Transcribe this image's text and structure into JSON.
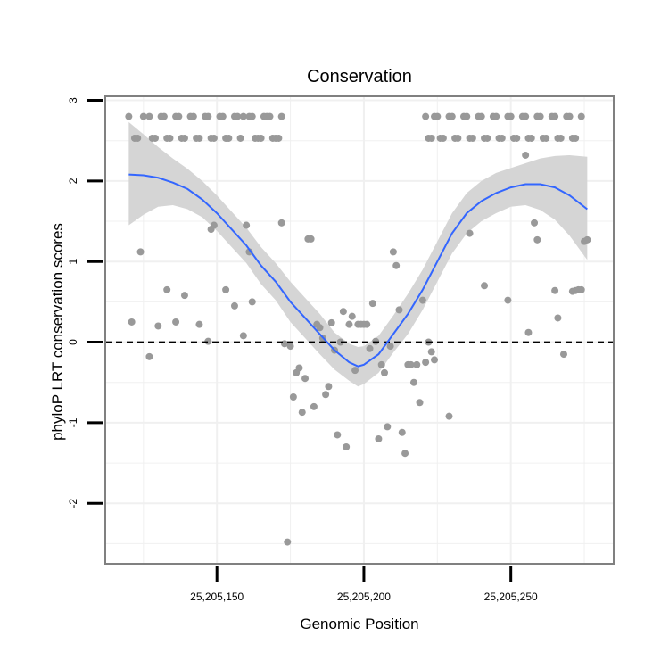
{
  "chart_data": {
    "type": "scatter",
    "title": "Conservation",
    "xlabel": "Genomic Position",
    "ylabel": "phyloP LRT conservation scores",
    "xlim": [
      25205112,
      25205285
    ],
    "ylim": [
      -2.75,
      3.05
    ],
    "x_ticks": [
      {
        "value": 25205150,
        "label": "25,205,150"
      },
      {
        "value": 25205200,
        "label": "25,205,200"
      },
      {
        "value": 25205250,
        "label": "25,205,250"
      }
    ],
    "y_ticks": [
      {
        "value": -2,
        "label": "-2"
      },
      {
        "value": -1,
        "label": "-1"
      },
      {
        "value": 0,
        "label": "0"
      },
      {
        "value": 1,
        "label": "1"
      },
      {
        "value": 2,
        "label": "2"
      },
      {
        "value": 3,
        "label": "3"
      }
    ],
    "grid": true,
    "reference_line": {
      "y": 0,
      "style": "dashed"
    },
    "colors": {
      "points": "#999999",
      "smooth": "#3366FF",
      "ribbon": "#d3d3d3",
      "panel_border": "#808080",
      "grid": "#f0f0f0"
    },
    "points": [
      [
        25205120,
        2.8
      ],
      [
        25205122,
        2.53
      ],
      [
        25205123,
        2.53
      ],
      [
        25205125,
        2.8
      ],
      [
        25205127,
        2.8
      ],
      [
        25205128,
        2.53
      ],
      [
        25205129,
        2.53
      ],
      [
        25205131,
        2.8
      ],
      [
        25205132,
        2.8
      ],
      [
        25205133,
        2.53
      ],
      [
        25205134,
        2.53
      ],
      [
        25205136,
        2.8
      ],
      [
        25205137,
        2.8
      ],
      [
        25205138,
        2.53
      ],
      [
        25205139,
        2.53
      ],
      [
        25205141,
        2.8
      ],
      [
        25205142,
        2.8
      ],
      [
        25205143,
        2.53
      ],
      [
        25205144,
        2.53
      ],
      [
        25205146,
        2.8
      ],
      [
        25205147,
        2.8
      ],
      [
        25205148,
        2.53
      ],
      [
        25205149,
        2.53
      ],
      [
        25205151,
        2.8
      ],
      [
        25205152,
        2.8
      ],
      [
        25205153,
        2.53
      ],
      [
        25205154,
        2.53
      ],
      [
        25205156,
        2.8
      ],
      [
        25205157,
        2.8
      ],
      [
        25205158,
        2.53
      ],
      [
        25205159,
        2.8
      ],
      [
        25205161,
        2.8
      ],
      [
        25205162,
        2.8
      ],
      [
        25205163,
        2.53
      ],
      [
        25205164,
        2.53
      ],
      [
        25205165,
        2.53
      ],
      [
        25205166,
        2.8
      ],
      [
        25205167,
        2.8
      ],
      [
        25205168,
        2.8
      ],
      [
        25205169,
        2.53
      ],
      [
        25205170,
        2.53
      ],
      [
        25205171,
        2.53
      ],
      [
        25205172,
        2.8
      ],
      [
        25205221,
        2.8
      ],
      [
        25205222,
        2.53
      ],
      [
        25205223,
        2.53
      ],
      [
        25205224,
        2.8
      ],
      [
        25205225,
        2.8
      ],
      [
        25205226,
        2.53
      ],
      [
        25205227,
        2.53
      ],
      [
        25205229,
        2.8
      ],
      [
        25205230,
        2.8
      ],
      [
        25205231,
        2.53
      ],
      [
        25205232,
        2.53
      ],
      [
        25205234,
        2.8
      ],
      [
        25205235,
        2.8
      ],
      [
        25205236,
        2.53
      ],
      [
        25205237,
        2.53
      ],
      [
        25205239,
        2.8
      ],
      [
        25205240,
        2.8
      ],
      [
        25205241,
        2.53
      ],
      [
        25205242,
        2.53
      ],
      [
        25205244,
        2.8
      ],
      [
        25205245,
        2.8
      ],
      [
        25205246,
        2.53
      ],
      [
        25205247,
        2.53
      ],
      [
        25205249,
        2.8
      ],
      [
        25205250,
        2.8
      ],
      [
        25205251,
        2.53
      ],
      [
        25205252,
        2.53
      ],
      [
        25205254,
        2.8
      ],
      [
        25205255,
        2.8
      ],
      [
        25205256,
        2.53
      ],
      [
        25205257,
        2.53
      ],
      [
        25205259,
        2.8
      ],
      [
        25205260,
        2.8
      ],
      [
        25205261,
        2.53
      ],
      [
        25205262,
        2.53
      ],
      [
        25205264,
        2.8
      ],
      [
        25205265,
        2.8
      ],
      [
        25205266,
        2.53
      ],
      [
        25205267,
        2.53
      ],
      [
        25205269,
        2.8
      ],
      [
        25205270,
        2.8
      ],
      [
        25205271,
        2.53
      ],
      [
        25205272,
        2.53
      ],
      [
        25205274,
        2.8
      ],
      [
        25205121,
        0.25
      ],
      [
        25205124,
        1.12
      ],
      [
        25205127,
        -0.18
      ],
      [
        25205130,
        0.2
      ],
      [
        25205133,
        0.65
      ],
      [
        25205136,
        0.25
      ],
      [
        25205139,
        0.58
      ],
      [
        25205144,
        0.22
      ],
      [
        25205147,
        0.01
      ],
      [
        25205148,
        1.4
      ],
      [
        25205149,
        1.45
      ],
      [
        25205153,
        0.65
      ],
      [
        25205156,
        0.45
      ],
      [
        25205159,
        0.08
      ],
      [
        25205160,
        1.45
      ],
      [
        25205161,
        1.12
      ],
      [
        25205162,
        0.5
      ],
      [
        25205172,
        1.48
      ],
      [
        25205173,
        -0.02
      ],
      [
        25205174,
        -2.48
      ],
      [
        25205175,
        -0.05
      ],
      [
        25205176,
        -0.68
      ],
      [
        25205177,
        -0.38
      ],
      [
        25205178,
        -0.32
      ],
      [
        25205179,
        -0.87
      ],
      [
        25205180,
        -0.45
      ],
      [
        25205181,
        1.28
      ],
      [
        25205182,
        1.28
      ],
      [
        25205183,
        -0.8
      ],
      [
        25205184,
        0.22
      ],
      [
        25205185,
        0.18
      ],
      [
        25205186,
        0.05
      ],
      [
        25205187,
        -0.65
      ],
      [
        25205188,
        -0.55
      ],
      [
        25205189,
        0.24
      ],
      [
        25205190,
        -0.1
      ],
      [
        25205191,
        -1.15
      ],
      [
        25205192,
        0.0
      ],
      [
        25205193,
        0.38
      ],
      [
        25205194,
        -1.3
      ],
      [
        25205195,
        0.22
      ],
      [
        25205196,
        0.32
      ],
      [
        25205197,
        -0.35
      ],
      [
        25205198,
        0.22
      ],
      [
        25205199,
        0.22
      ],
      [
        25205200,
        0.22
      ],
      [
        25205201,
        0.22
      ],
      [
        25205202,
        -0.08
      ],
      [
        25205203,
        0.48
      ],
      [
        25205204,
        0.01
      ],
      [
        25205205,
        -1.2
      ],
      [
        25205206,
        -0.28
      ],
      [
        25205207,
        -0.38
      ],
      [
        25205208,
        -1.05
      ],
      [
        25205209,
        -0.05
      ],
      [
        25205210,
        1.12
      ],
      [
        25205211,
        0.95
      ],
      [
        25205212,
        0.4
      ],
      [
        25205213,
        -1.12
      ],
      [
        25205214,
        -1.38
      ],
      [
        25205215,
        -0.28
      ],
      [
        25205216,
        -0.28
      ],
      [
        25205217,
        -0.5
      ],
      [
        25205218,
        -0.28
      ],
      [
        25205219,
        -0.75
      ],
      [
        25205220,
        0.52
      ],
      [
        25205221,
        -0.25
      ],
      [
        25205222,
        0.0
      ],
      [
        25205223,
        -0.12
      ],
      [
        25205224,
        -0.22
      ],
      [
        25205229,
        -0.92
      ],
      [
        25205236,
        1.35
      ],
      [
        25205241,
        0.7
      ],
      [
        25205249,
        0.52
      ],
      [
        25205255,
        2.32
      ],
      [
        25205256,
        0.12
      ],
      [
        25205258,
        1.48
      ],
      [
        25205259,
        1.27
      ],
      [
        25205265,
        0.64
      ],
      [
        25205266,
        0.3
      ],
      [
        25205268,
        -0.15
      ],
      [
        25205271,
        0.63
      ],
      [
        25205272,
        0.64
      ],
      [
        25205273,
        0.65
      ],
      [
        25205274,
        0.65
      ],
      [
        25205275,
        1.25
      ],
      [
        25205276,
        1.27
      ]
    ],
    "smooth": [
      [
        25205120,
        2.08
      ],
      [
        25205125,
        2.07
      ],
      [
        25205130,
        2.04
      ],
      [
        25205135,
        1.98
      ],
      [
        25205140,
        1.9
      ],
      [
        25205145,
        1.77
      ],
      [
        25205150,
        1.6
      ],
      [
        25205155,
        1.4
      ],
      [
        25205160,
        1.2
      ],
      [
        25205165,
        0.95
      ],
      [
        25205170,
        0.75
      ],
      [
        25205175,
        0.5
      ],
      [
        25205180,
        0.3
      ],
      [
        25205185,
        0.1
      ],
      [
        25205190,
        -0.1
      ],
      [
        25205195,
        -0.25
      ],
      [
        25205198,
        -0.3
      ],
      [
        25205200,
        -0.28
      ],
      [
        25205205,
        -0.15
      ],
      [
        25205210,
        0.1
      ],
      [
        25205215,
        0.35
      ],
      [
        25205220,
        0.65
      ],
      [
        25205225,
        1.0
      ],
      [
        25205230,
        1.35
      ],
      [
        25205235,
        1.6
      ],
      [
        25205240,
        1.75
      ],
      [
        25205245,
        1.85
      ],
      [
        25205250,
        1.92
      ],
      [
        25205255,
        1.96
      ],
      [
        25205260,
        1.96
      ],
      [
        25205265,
        1.92
      ],
      [
        25205270,
        1.82
      ],
      [
        25205276,
        1.65
      ]
    ],
    "band_upper": [
      [
        25205120,
        2.73
      ],
      [
        25205125,
        2.58
      ],
      [
        25205130,
        2.42
      ],
      [
        25205135,
        2.28
      ],
      [
        25205140,
        2.15
      ],
      [
        25205145,
        2.0
      ],
      [
        25205150,
        1.82
      ],
      [
        25205155,
        1.62
      ],
      [
        25205160,
        1.42
      ],
      [
        25205165,
        1.18
      ],
      [
        25205170,
        0.98
      ],
      [
        25205175,
        0.75
      ],
      [
        25205180,
        0.55
      ],
      [
        25205185,
        0.35
      ],
      [
        25205190,
        0.12
      ],
      [
        25205195,
        -0.02
      ],
      [
        25205198,
        -0.06
      ],
      [
        25205200,
        -0.05
      ],
      [
        25205205,
        0.08
      ],
      [
        25205210,
        0.33
      ],
      [
        25205215,
        0.6
      ],
      [
        25205220,
        0.9
      ],
      [
        25205225,
        1.25
      ],
      [
        25205230,
        1.6
      ],
      [
        25205235,
        1.85
      ],
      [
        25205240,
        2.0
      ],
      [
        25205245,
        2.1
      ],
      [
        25205250,
        2.16
      ],
      [
        25205255,
        2.22
      ],
      [
        25205260,
        2.28
      ],
      [
        25205265,
        2.31
      ],
      [
        25205270,
        2.32
      ],
      [
        25205276,
        2.3
      ]
    ],
    "band_lower": [
      [
        25205120,
        1.45
      ],
      [
        25205125,
        1.58
      ],
      [
        25205130,
        1.68
      ],
      [
        25205135,
        1.7
      ],
      [
        25205140,
        1.65
      ],
      [
        25205145,
        1.55
      ],
      [
        25205150,
        1.38
      ],
      [
        25205155,
        1.18
      ],
      [
        25205160,
        0.98
      ],
      [
        25205165,
        0.72
      ],
      [
        25205170,
        0.52
      ],
      [
        25205175,
        0.25
      ],
      [
        25205180,
        0.05
      ],
      [
        25205185,
        -0.15
      ],
      [
        25205190,
        -0.34
      ],
      [
        25205195,
        -0.48
      ],
      [
        25205198,
        -0.55
      ],
      [
        25205200,
        -0.52
      ],
      [
        25205205,
        -0.38
      ],
      [
        25205210,
        -0.13
      ],
      [
        25205215,
        0.1
      ],
      [
        25205220,
        0.4
      ],
      [
        25205225,
        0.75
      ],
      [
        25205230,
        1.1
      ],
      [
        25205235,
        1.35
      ],
      [
        25205240,
        1.5
      ],
      [
        25205245,
        1.6
      ],
      [
        25205250,
        1.68
      ],
      [
        25205255,
        1.7
      ],
      [
        25205260,
        1.64
      ],
      [
        25205265,
        1.52
      ],
      [
        25205270,
        1.32
      ],
      [
        25205276,
        1.02
      ]
    ]
  }
}
